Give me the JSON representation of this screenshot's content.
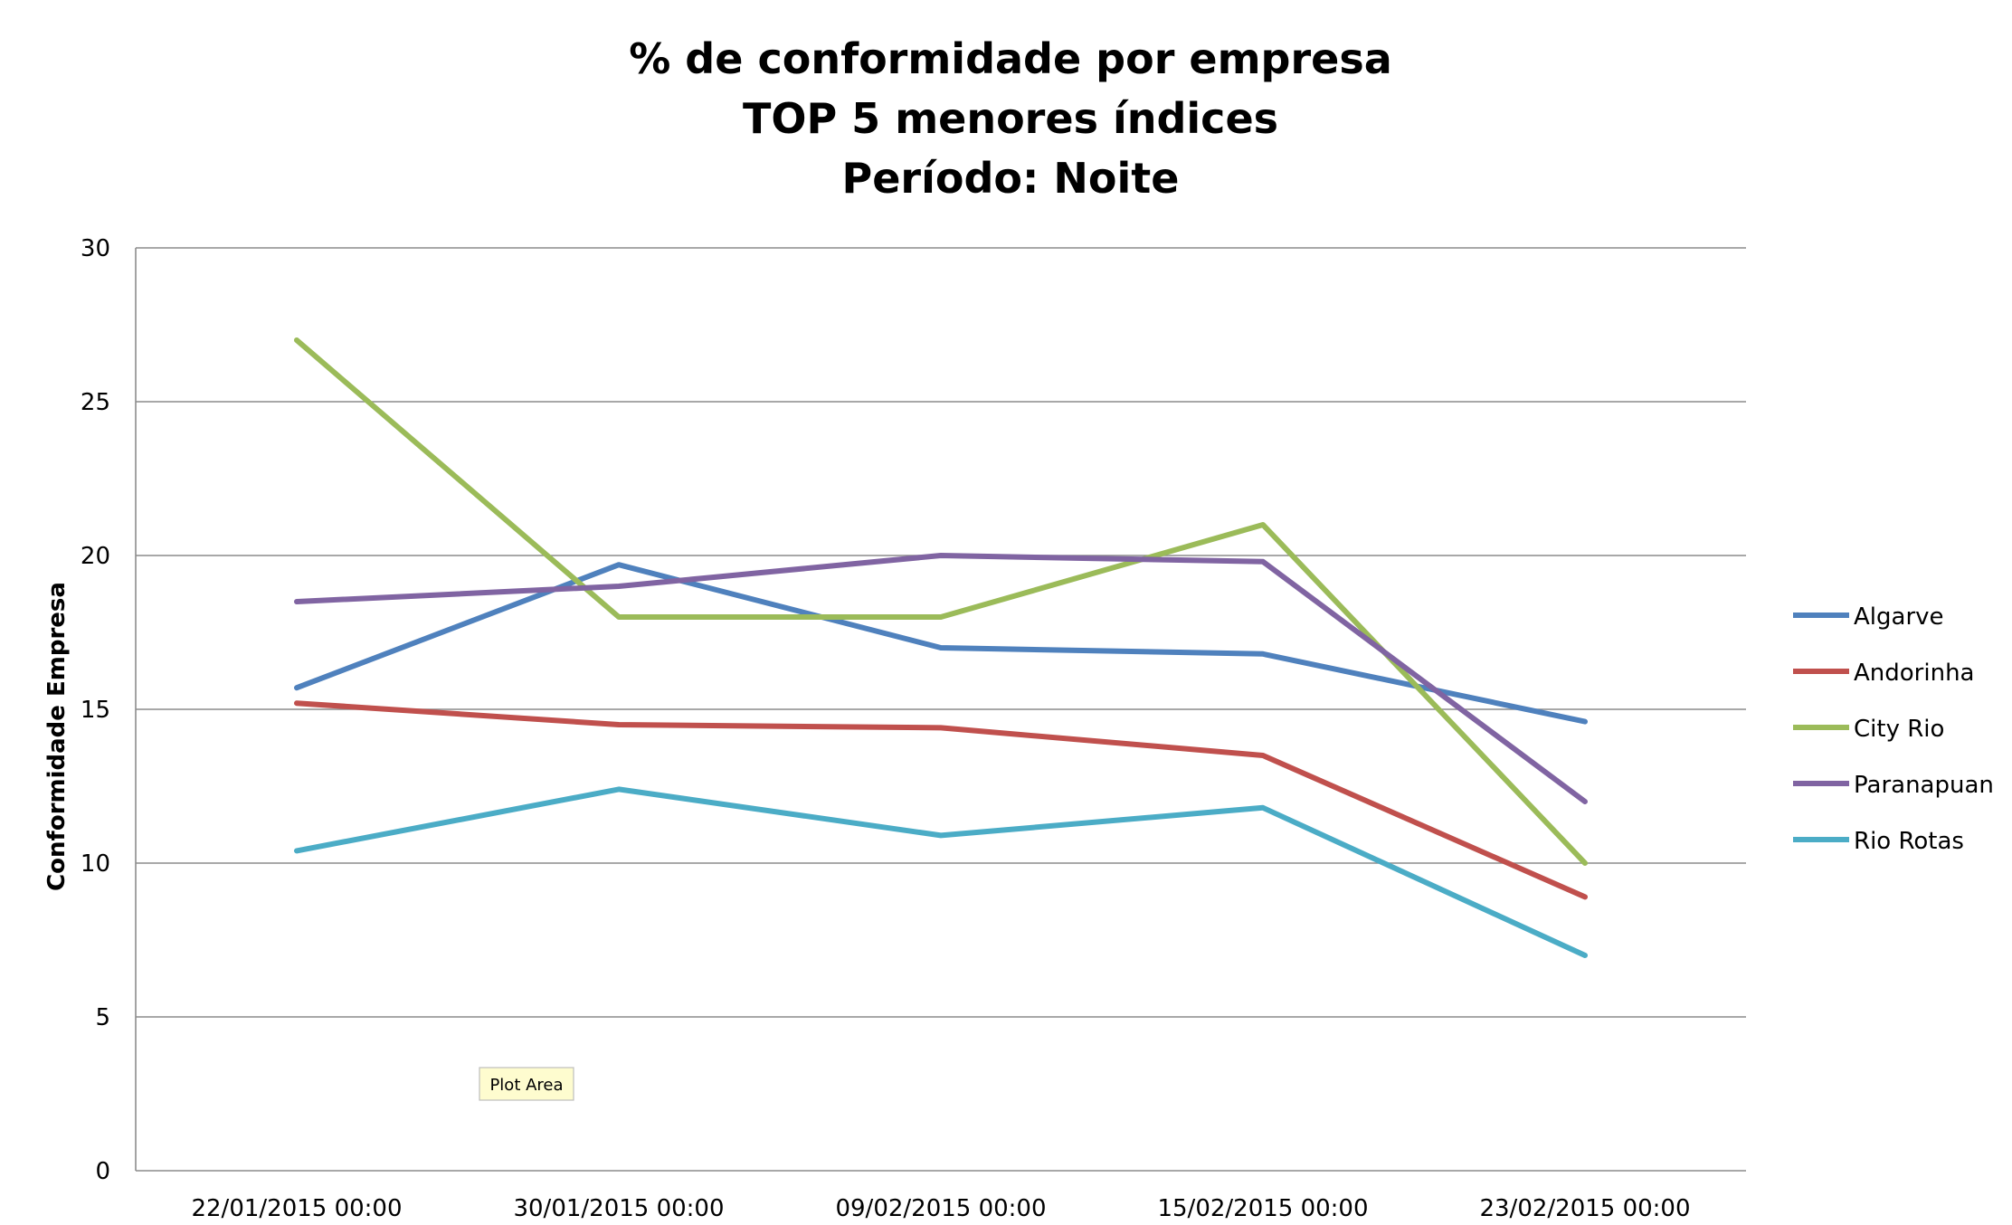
{
  "chart_data": {
    "type": "line",
    "title": [
      "% de conformidade por empresa",
      "TOP 5 menores índices",
      "Período: Noite"
    ],
    "ylabel": "Conformidade Empresa",
    "xlabel": "",
    "ylim": [
      0,
      30
    ],
    "yticks": [
      "0",
      "5",
      "10",
      "15",
      "20",
      "25",
      "30"
    ],
    "grid": true,
    "legend_position": "right",
    "categories": [
      "22/01/2015 00:00",
      "30/01/2015 00:00",
      "09/02/2015 00:00",
      "15/02/2015 00:00",
      "23/02/2015 00:00"
    ],
    "series": [
      {
        "name": "Algarve",
        "color": "#4F81BD",
        "values": [
          15.7,
          19.7,
          17.0,
          16.8,
          14.6
        ]
      },
      {
        "name": "Andorinha",
        "color": "#C0504D",
        "values": [
          15.2,
          14.5,
          14.4,
          13.5,
          8.9
        ]
      },
      {
        "name": "City Rio",
        "color": "#9BBB59",
        "values": [
          27.0,
          18.0,
          18.0,
          21.0,
          10.0
        ]
      },
      {
        "name": "Paranapuan",
        "color": "#8064A2",
        "values": [
          18.5,
          19.0,
          20.0,
          19.8,
          12.0
        ]
      },
      {
        "name": "Rio Rotas",
        "color": "#4BACC6",
        "values": [
          10.4,
          12.4,
          10.9,
          11.8,
          7.0
        ]
      }
    ]
  },
  "tooltip": {
    "text": "Plot Area"
  }
}
